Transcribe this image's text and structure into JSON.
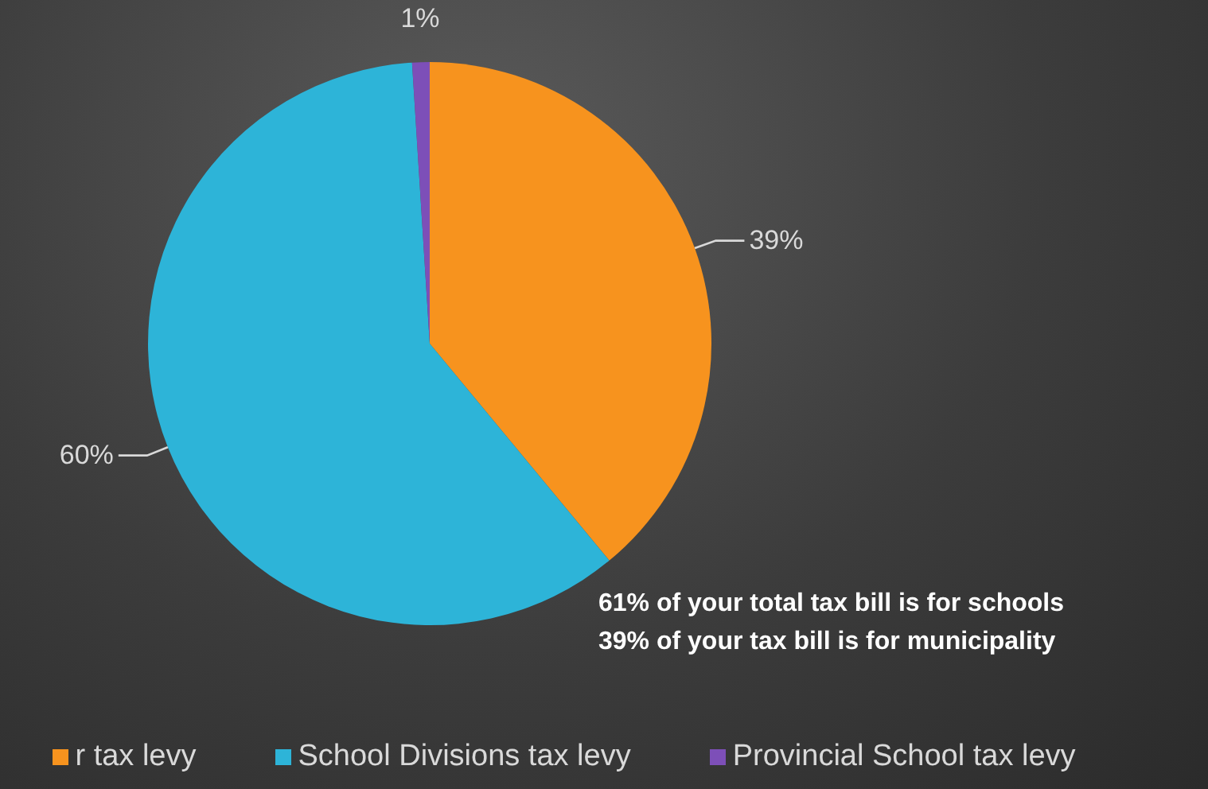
{
  "chart_data": {
    "type": "pie",
    "categories": [
      "r tax levy",
      "School Divisions tax levy",
      "Provincial School tax levy"
    ],
    "values": [
      39,
      60,
      1
    ],
    "value_labels": [
      "39%",
      "60%",
      "1%"
    ],
    "colors": [
      "#f7931e",
      "#2db4d8",
      "#7d4fb8"
    ],
    "legend": "bottom",
    "annotations": [
      "61% of your total tax bill is for schools",
      "39% of your tax bill is for municipality"
    ]
  }
}
